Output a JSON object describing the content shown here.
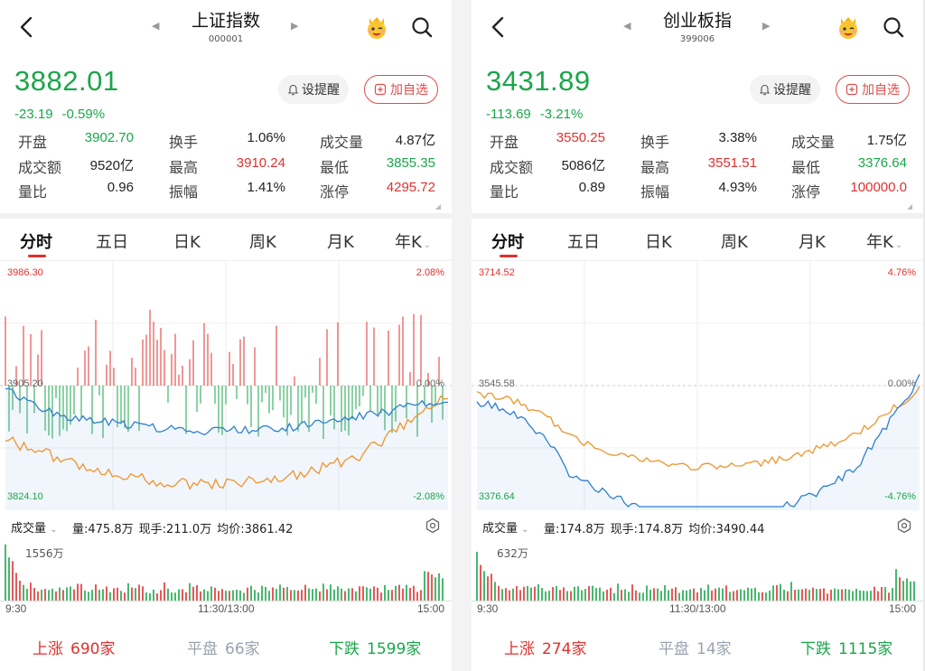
{
  "panels": [
    {
      "title": "上证指数",
      "code": "000001",
      "price": "3882.01",
      "change": "-23.19",
      "change_pct": "-0.59%",
      "alert_label": "设提醒",
      "watch_label": "加自选",
      "stats": {
        "open_label": "开盘",
        "open": "3902.70",
        "turnover_label": "换手",
        "turnover": "1.06%",
        "volume_label": "成交量",
        "volume": "4.87亿",
        "amount_label": "成交额",
        "amount": "9520亿",
        "high_label": "最高",
        "high": "3910.24",
        "low_label": "最低",
        "low": "3855.35",
        "ratio_label": "量比",
        "ratio": "0.96",
        "amplitude_label": "振幅",
        "amplitude": "1.41%",
        "limit_label": "涨停",
        "limit": "4295.72"
      },
      "tabs": [
        "分时",
        "五日",
        "日K",
        "周K",
        "月K",
        "年K"
      ],
      "axis": {
        "top": "3986.30",
        "mid": "3905.20",
        "bottom": "3824.10",
        "top_pct": "2.08%",
        "mid_pct": "0.00%",
        "bottom_pct": "-2.08%"
      },
      "volume_bar": {
        "select": "成交量",
        "vol": "量:475.8万",
        "now": "现手:211.0万",
        "avg": "均价:3861.42",
        "max": "1556万"
      },
      "time": [
        "9:30",
        "11:30/13:00",
        "15:00"
      ],
      "breadth": {
        "up_label": "上涨",
        "up": "690家",
        "flat_label": "平盘",
        "flat": "66家",
        "down_label": "下跌",
        "down": "1599家"
      }
    },
    {
      "title": "创业板指",
      "code": "399006",
      "price": "3431.89",
      "change": "-113.69",
      "change_pct": "-3.21%",
      "alert_label": "设提醒",
      "watch_label": "加自选",
      "stats": {
        "open_label": "开盘",
        "open": "3550.25",
        "turnover_label": "换手",
        "turnover": "3.38%",
        "volume_label": "成交量",
        "volume": "1.75亿",
        "amount_label": "成交额",
        "amount": "5086亿",
        "high_label": "最高",
        "high": "3551.51",
        "low_label": "最低",
        "low": "3376.64",
        "ratio_label": "量比",
        "ratio": "0.89",
        "amplitude_label": "振幅",
        "amplitude": "4.93%",
        "limit_label": "涨停",
        "limit": "100000.0"
      },
      "tabs": [
        "分时",
        "五日",
        "日K",
        "周K",
        "月K",
        "年K"
      ],
      "axis": {
        "top": "3714.52",
        "mid": "3545.58",
        "bottom": "3376.64",
        "top_pct": "4.76%",
        "mid_pct": "0.00%",
        "bottom_pct": "-4.76%"
      },
      "volume_bar": {
        "select": "成交量",
        "vol": "量:174.8万",
        "now": "现手:174.8万",
        "avg": "均价:3490.44",
        "max": "632万"
      },
      "time": [
        "9:30",
        "11:30/13:00",
        "15:00"
      ],
      "breadth": {
        "up_label": "上涨",
        "up": "274家",
        "flat_label": "平盘",
        "flat": "14家",
        "down_label": "下跌",
        "down": "1115家"
      }
    }
  ],
  "colors": {
    "up": "#e0302e",
    "down": "#1aa64a",
    "price_line": "#2f7fcf",
    "avg_line": "#f0932b",
    "flat": "#9aa3b0"
  },
  "icons": {
    "back": "chevron-left-icon",
    "mascot": "mascot-icon",
    "search": "search-icon",
    "bell": "bell-icon",
    "add": "plus-square-icon",
    "settings": "settings-icon"
  }
}
